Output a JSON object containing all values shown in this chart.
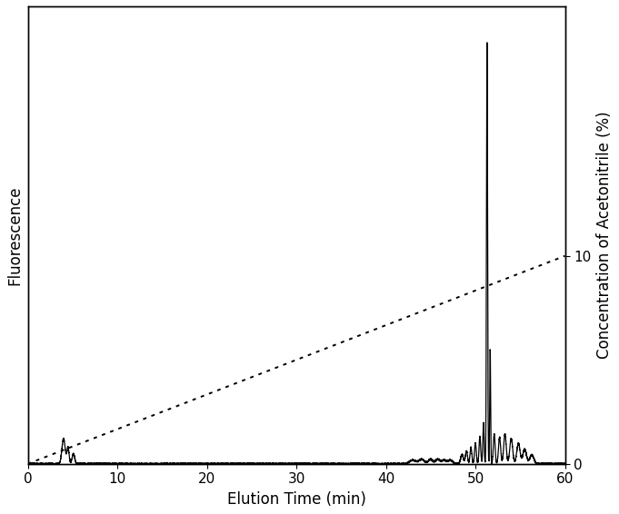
{
  "xlabel": "Elution Time (min)",
  "ylabel_left": "Fluorescence",
  "ylabel_right": "Concentration of Acetonitrile (%)",
  "xlim": [
    0,
    60
  ],
  "ylim_left": [
    0,
    1
  ],
  "ylim_right": [
    0,
    22
  ],
  "xticks": [
    0,
    10,
    20,
    30,
    40,
    50,
    60
  ],
  "right_yticks": [
    0,
    10
  ],
  "gradient_start_x": 0,
  "gradient_start_y": 0,
  "gradient_end_x": 60,
  "gradient_end_y": 10,
  "background_color": "#ffffff",
  "line_color": "#000000",
  "dotted_color": "#000000"
}
